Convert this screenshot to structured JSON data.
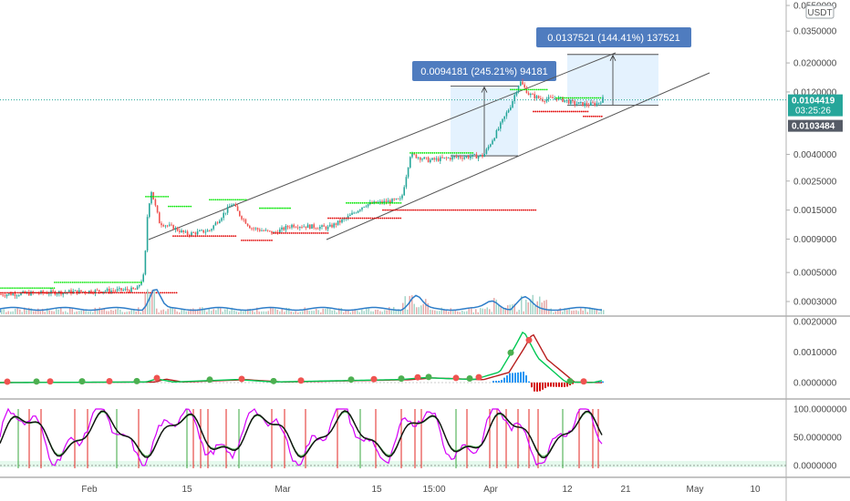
{
  "chart_data": {
    "type": "candlestick",
    "currency": "USDT",
    "price_axis_labels": [
      "0.0550000",
      "0.0350000",
      "0.0200000",
      "0.0120000",
      "0.0040000",
      "0.0025000",
      "0.0015000",
      "0.0009000",
      "0.0005000",
      "0.0003000"
    ],
    "price_axis_values": [
      0.055,
      0.035,
      0.02,
      0.012,
      0.004,
      0.0025,
      0.0015,
      0.0009,
      0.0005,
      0.0003
    ],
    "price_scale": "log",
    "current_price": "0.0104419",
    "countdown": "03:25:26",
    "secondary_price": "0.0103484",
    "measure_boxes": [
      {
        "label": "0.0094181 (245.21%) 94181",
        "from_price": 0.0039,
        "to_price": 0.0133
      },
      {
        "label": "0.0137521 (144.41%) 137521",
        "from_price": 0.0095,
        "to_price": 0.0232
      }
    ],
    "macd_axis_labels": [
      "0.0020000",
      "0.0010000",
      "0.0000000"
    ],
    "macd_axis_values": [
      0.002,
      0.001,
      0.0
    ],
    "stoch_axis_labels": [
      "100.0000000",
      "50.0000000",
      "0.0000000"
    ],
    "stoch_axis_values": [
      100,
      50,
      0
    ],
    "time_labels": [
      "Feb",
      "15",
      "Mar",
      "15",
      "15:00",
      "Apr",
      "12",
      "21",
      "May",
      "10"
    ],
    "time_label_days": [
      31,
      45,
      59,
      73,
      84,
      90,
      101,
      110,
      120,
      130
    ]
  }
}
